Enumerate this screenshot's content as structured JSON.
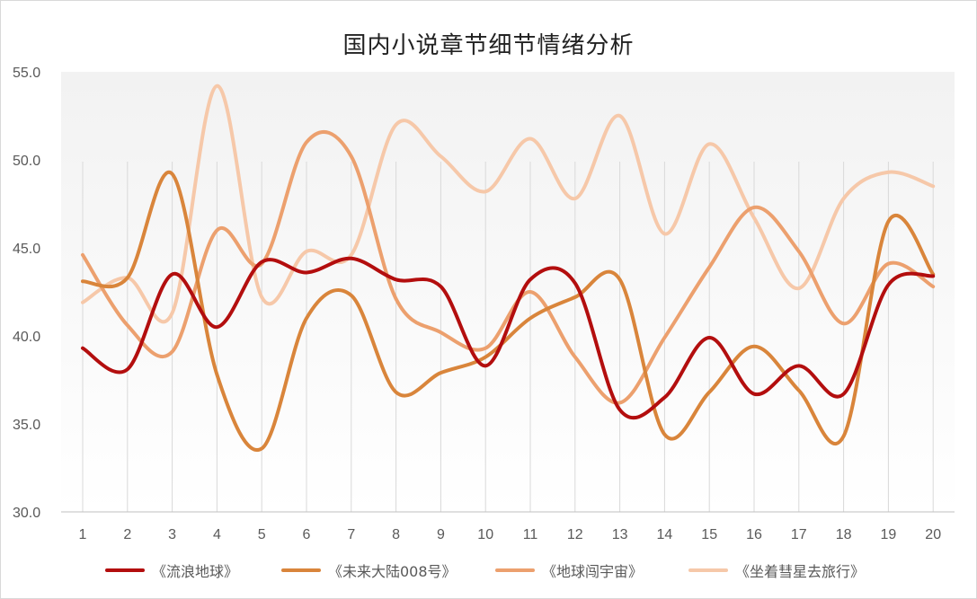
{
  "chart_data": {
    "type": "line",
    "title": "国内小说章节细节情绪分析",
    "categories": [
      "1",
      "2",
      "3",
      "4",
      "5",
      "6",
      "7",
      "8",
      "9",
      "10",
      "11",
      "12",
      "13",
      "14",
      "15",
      "16",
      "17",
      "18",
      "19",
      "20"
    ],
    "ylim": [
      30,
      55
    ],
    "yticks": [
      "30.0",
      "35.0",
      "40.0",
      "45.0",
      "50.0",
      "55.0"
    ],
    "grid": "vertical",
    "smooth": true,
    "legend_position": "bottom",
    "series": [
      {
        "name": "《流浪地球》",
        "color": "#b30e0e",
        "values": [
          39.3,
          38.1,
          43.5,
          40.5,
          44.2,
          43.6,
          44.4,
          43.2,
          42.8,
          38.3,
          43.2,
          43.0,
          35.8,
          36.5,
          39.9,
          36.7,
          38.3,
          36.7,
          42.9,
          43.4
        ]
      },
      {
        "name": "《未来大陆008号》",
        "color": "#d9853b",
        "values": [
          43.1,
          43.3,
          49.2,
          37.8,
          33.6,
          41.0,
          42.3,
          36.8,
          37.9,
          38.8,
          41.0,
          42.2,
          43.2,
          34.4,
          36.8,
          39.4,
          36.9,
          34.3,
          46.5,
          43.5
        ]
      },
      {
        "name": "《地球闯宇宙》",
        "color": "#eca06e",
        "values": [
          44.6,
          40.6,
          39.1,
          46.0,
          44.1,
          51.0,
          50.2,
          42.1,
          40.2,
          39.3,
          42.5,
          38.8,
          36.2,
          39.9,
          43.9,
          47.3,
          44.8,
          40.7,
          44.1,
          42.8
        ]
      },
      {
        "name": "《坐着彗星去旅行》",
        "color": "#f6c8a9",
        "values": [
          41.9,
          43.3,
          41.3,
          54.2,
          42.2,
          44.8,
          44.6,
          52.0,
          50.2,
          48.2,
          51.2,
          47.8,
          52.5,
          45.8,
          50.9,
          46.7,
          42.7,
          47.8,
          49.3,
          48.5
        ]
      }
    ]
  }
}
